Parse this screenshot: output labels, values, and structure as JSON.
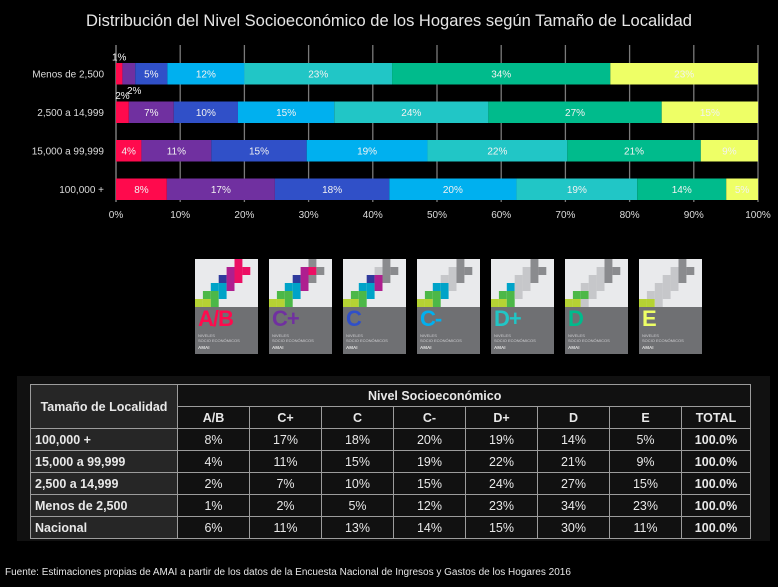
{
  "title": "Distribución del Nivel Socioeconómico de los Hogares según Tamaño de Localidad",
  "chart_data": {
    "type": "bar",
    "orientation": "horizontal",
    "stacked": "percent",
    "title": "Distribución del Nivel Socioeconómico de los Hogares según Tamaño de Localidad",
    "categories": [
      "Menos de 2,500",
      "2,500 a 14,999",
      "15,000 a 99,999",
      "100,000 +"
    ],
    "series": [
      {
        "name": "A/B",
        "color": "#ff0a4d",
        "values": [
          1,
          2,
          4,
          8
        ],
        "labels": [
          "1%",
          "2%",
          "4%",
          "8%"
        ]
      },
      {
        "name": "C+",
        "color": "#7030a0",
        "values": [
          2,
          7,
          11,
          17
        ],
        "labels": [
          "2%",
          "7%",
          "11%",
          "17%"
        ]
      },
      {
        "name": "C",
        "color": "#3050c8",
        "values": [
          5,
          10,
          15,
          18
        ],
        "labels": [
          "5%",
          "10%",
          "15%",
          "18%"
        ]
      },
      {
        "name": "C-",
        "color": "#00b0ef",
        "values": [
          12,
          15,
          19,
          20
        ],
        "labels": [
          "12%",
          "15%",
          "19%",
          "20%"
        ]
      },
      {
        "name": "D+",
        "color": "#21c6c6",
        "values": [
          23,
          24,
          22,
          19
        ],
        "labels": [
          "23%",
          "24%",
          "22%",
          "19%"
        ]
      },
      {
        "name": "D",
        "color": "#00bb8c",
        "values": [
          34,
          27,
          21,
          14
        ],
        "labels": [
          "34%",
          "27%",
          "21%",
          "14%"
        ]
      },
      {
        "name": "E",
        "color": "#eeff66",
        "values": [
          23,
          15,
          9,
          5
        ],
        "labels": [
          "23%",
          "15%",
          "9%",
          "5%"
        ]
      }
    ],
    "xlim": [
      0,
      100
    ],
    "xticks": [
      "0%",
      "10%",
      "20%",
      "30%",
      "40%",
      "50%",
      "60%",
      "70%",
      "80%",
      "90%",
      "100%"
    ],
    "grid": true,
    "xlabel": "",
    "ylabel": ""
  },
  "logos": [
    {
      "code": "A/B",
      "color": "#ff0a4d",
      "line1": "NIVELES",
      "line2": "SOCIO ECONÓMICOS",
      "brand": "AMAI"
    },
    {
      "code": "C+",
      "color": "#7030a0",
      "line1": "NIVELES",
      "line2": "SOCIO ECONÓMICOS",
      "brand": "AMAI"
    },
    {
      "code": "C",
      "color": "#3050c8",
      "line1": "NIVELES",
      "line2": "SOCIO ECONÓMICOS",
      "brand": "AMAI"
    },
    {
      "code": "C-",
      "color": "#00b0ef",
      "line1": "NIVELES",
      "line2": "SOCIO ECONÓMICOS",
      "brand": "AMAI"
    },
    {
      "code": "D+",
      "color": "#21c6c6",
      "line1": "NIVELES",
      "line2": "SOCIO ECONÓMICOS",
      "brand": "AMAI"
    },
    {
      "code": "D",
      "color": "#00bb8c",
      "line1": "NIVELES",
      "line2": "SOCIO ECONÓMICOS",
      "brand": "AMAI"
    },
    {
      "code": "E",
      "color": "#eeff66",
      "line1": "NIVELES",
      "line2": "SOCIO ECONÓMICOS",
      "brand": "AMAI"
    }
  ],
  "table": {
    "row_header": "Tamaño de Localidad",
    "group_header": "Nivel Socioeconómico",
    "columns": [
      "A/B",
      "C+",
      "C",
      "C-",
      "D+",
      "D",
      "E",
      "TOTAL"
    ],
    "rows": [
      {
        "label": "100,000 +",
        "values": [
          "8%",
          "17%",
          "18%",
          "20%",
          "19%",
          "14%",
          "5%",
          "100.0%"
        ]
      },
      {
        "label": "15,000 a 99,999",
        "values": [
          "4%",
          "11%",
          "15%",
          "19%",
          "22%",
          "21%",
          "9%",
          "100.0%"
        ]
      },
      {
        "label": "2,500 a 14,999",
        "values": [
          "2%",
          "7%",
          "10%",
          "15%",
          "24%",
          "27%",
          "15%",
          "100.0%"
        ]
      },
      {
        "label": "Menos de 2,500",
        "values": [
          "1%",
          "2%",
          "5%",
          "12%",
          "23%",
          "34%",
          "23%",
          "100.0%"
        ]
      },
      {
        "label": "Nacional",
        "values": [
          "6%",
          "11%",
          "13%",
          "14%",
          "15%",
          "30%",
          "11%",
          "100.0%"
        ]
      }
    ]
  },
  "source": "Fuente: Estimaciones propias de AMAI a partir de los datos de la Encuesta Nacional de Ingresos y Gastos de los Hogares 2016"
}
